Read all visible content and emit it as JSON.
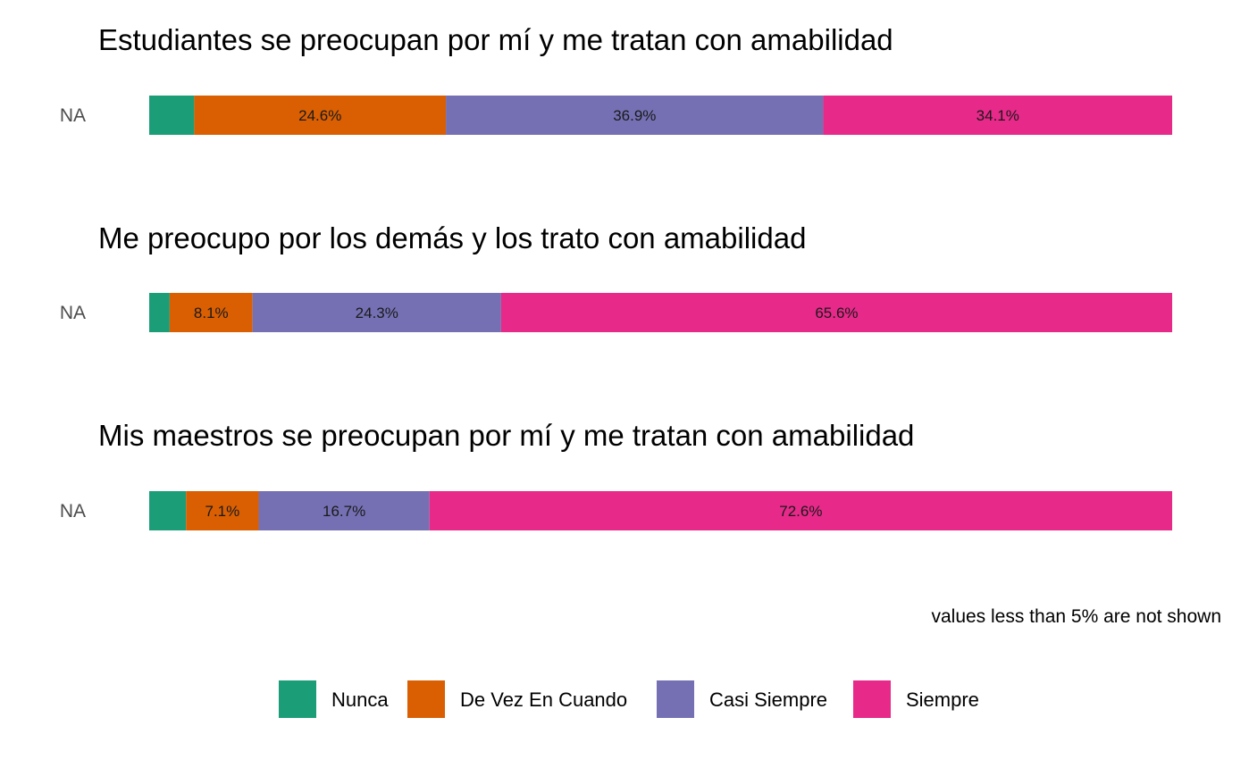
{
  "chart_data": {
    "type": "bar",
    "orientation": "horizontal",
    "stacked": true,
    "normalized_percent": true,
    "colors": {
      "Nunca": "#1B9E77",
      "De Vez En Cuando": "#D95F02",
      "Casi Siempre": "#7570B3",
      "Siempre": "#E7298A"
    },
    "legend": {
      "position": "bottom",
      "entries": [
        "Nunca",
        "De Vez En Cuando",
        "Casi Siempre",
        "Siempre"
      ]
    },
    "caption": "values less than 5% are not shown",
    "panels": [
      {
        "title": "Estudiantes se preocupan por mí y me tratan con amabilidad",
        "row_label": "NA",
        "segments": [
          {
            "category": "Nunca",
            "value": 4.4,
            "label": ""
          },
          {
            "category": "De Vez En Cuando",
            "value": 24.6,
            "label": "24.6%"
          },
          {
            "category": "Casi Siempre",
            "value": 36.9,
            "label": "36.9%"
          },
          {
            "category": "Siempre",
            "value": 34.1,
            "label": "34.1%"
          }
        ]
      },
      {
        "title": "Me preocupo por los demás y los trato con amabilidad",
        "row_label": "NA",
        "segments": [
          {
            "category": "Nunca",
            "value": 2.0,
            "label": ""
          },
          {
            "category": "De Vez En Cuando",
            "value": 8.1,
            "label": "8.1%"
          },
          {
            "category": "Casi Siempre",
            "value": 24.3,
            "label": "24.3%"
          },
          {
            "category": "Siempre",
            "value": 65.6,
            "label": "65.6%"
          }
        ]
      },
      {
        "title": "Mis maestros se preocupan por mí y me tratan con amabilidad",
        "row_label": "NA",
        "segments": [
          {
            "category": "Nunca",
            "value": 3.6,
            "label": ""
          },
          {
            "category": "De Vez En Cuando",
            "value": 7.1,
            "label": "7.1%"
          },
          {
            "category": "Casi Siempre",
            "value": 16.7,
            "label": "16.7%"
          },
          {
            "category": "Siempre",
            "value": 72.6,
            "label": "72.6%"
          }
        ]
      }
    ]
  }
}
